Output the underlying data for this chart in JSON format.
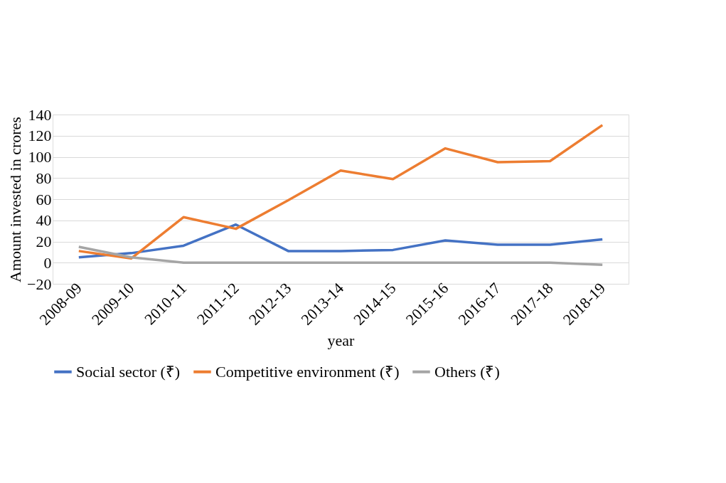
{
  "chart_data": {
    "type": "line",
    "xlabel": "year",
    "ylabel": "Amount  invested in crores",
    "categories": [
      "2008-09",
      "2009-10",
      "2010-11",
      "2011-12",
      "2012-13",
      "2013-14",
      "2014-15",
      "2015-16",
      "2016-17",
      "2017-18",
      "2018-19"
    ],
    "series": [
      {
        "name": "Social sector (₹)",
        "color": "#4472c4",
        "values": [
          5,
          9,
          16,
          36,
          11,
          11,
          12,
          21,
          17,
          17,
          22
        ]
      },
      {
        "name": "Competitive environment (₹)",
        "color": "#ed7d31",
        "values": [
          11,
          4,
          43,
          32,
          59,
          87,
          79,
          108,
          95,
          96,
          130
        ]
      },
      {
        "name": "Others (₹)",
        "color": "#a5a5a5",
        "values": [
          15,
          5,
          0,
          0,
          0,
          0,
          0,
          0,
          0,
          0,
          -2
        ]
      }
    ],
    "ylim": [
      -20,
      140
    ],
    "yticks": [
      -20,
      0,
      20,
      40,
      60,
      80,
      100,
      120,
      140
    ],
    "grid": "y",
    "legend": "bottom",
    "marker": "none",
    "line_style": "solid"
  }
}
